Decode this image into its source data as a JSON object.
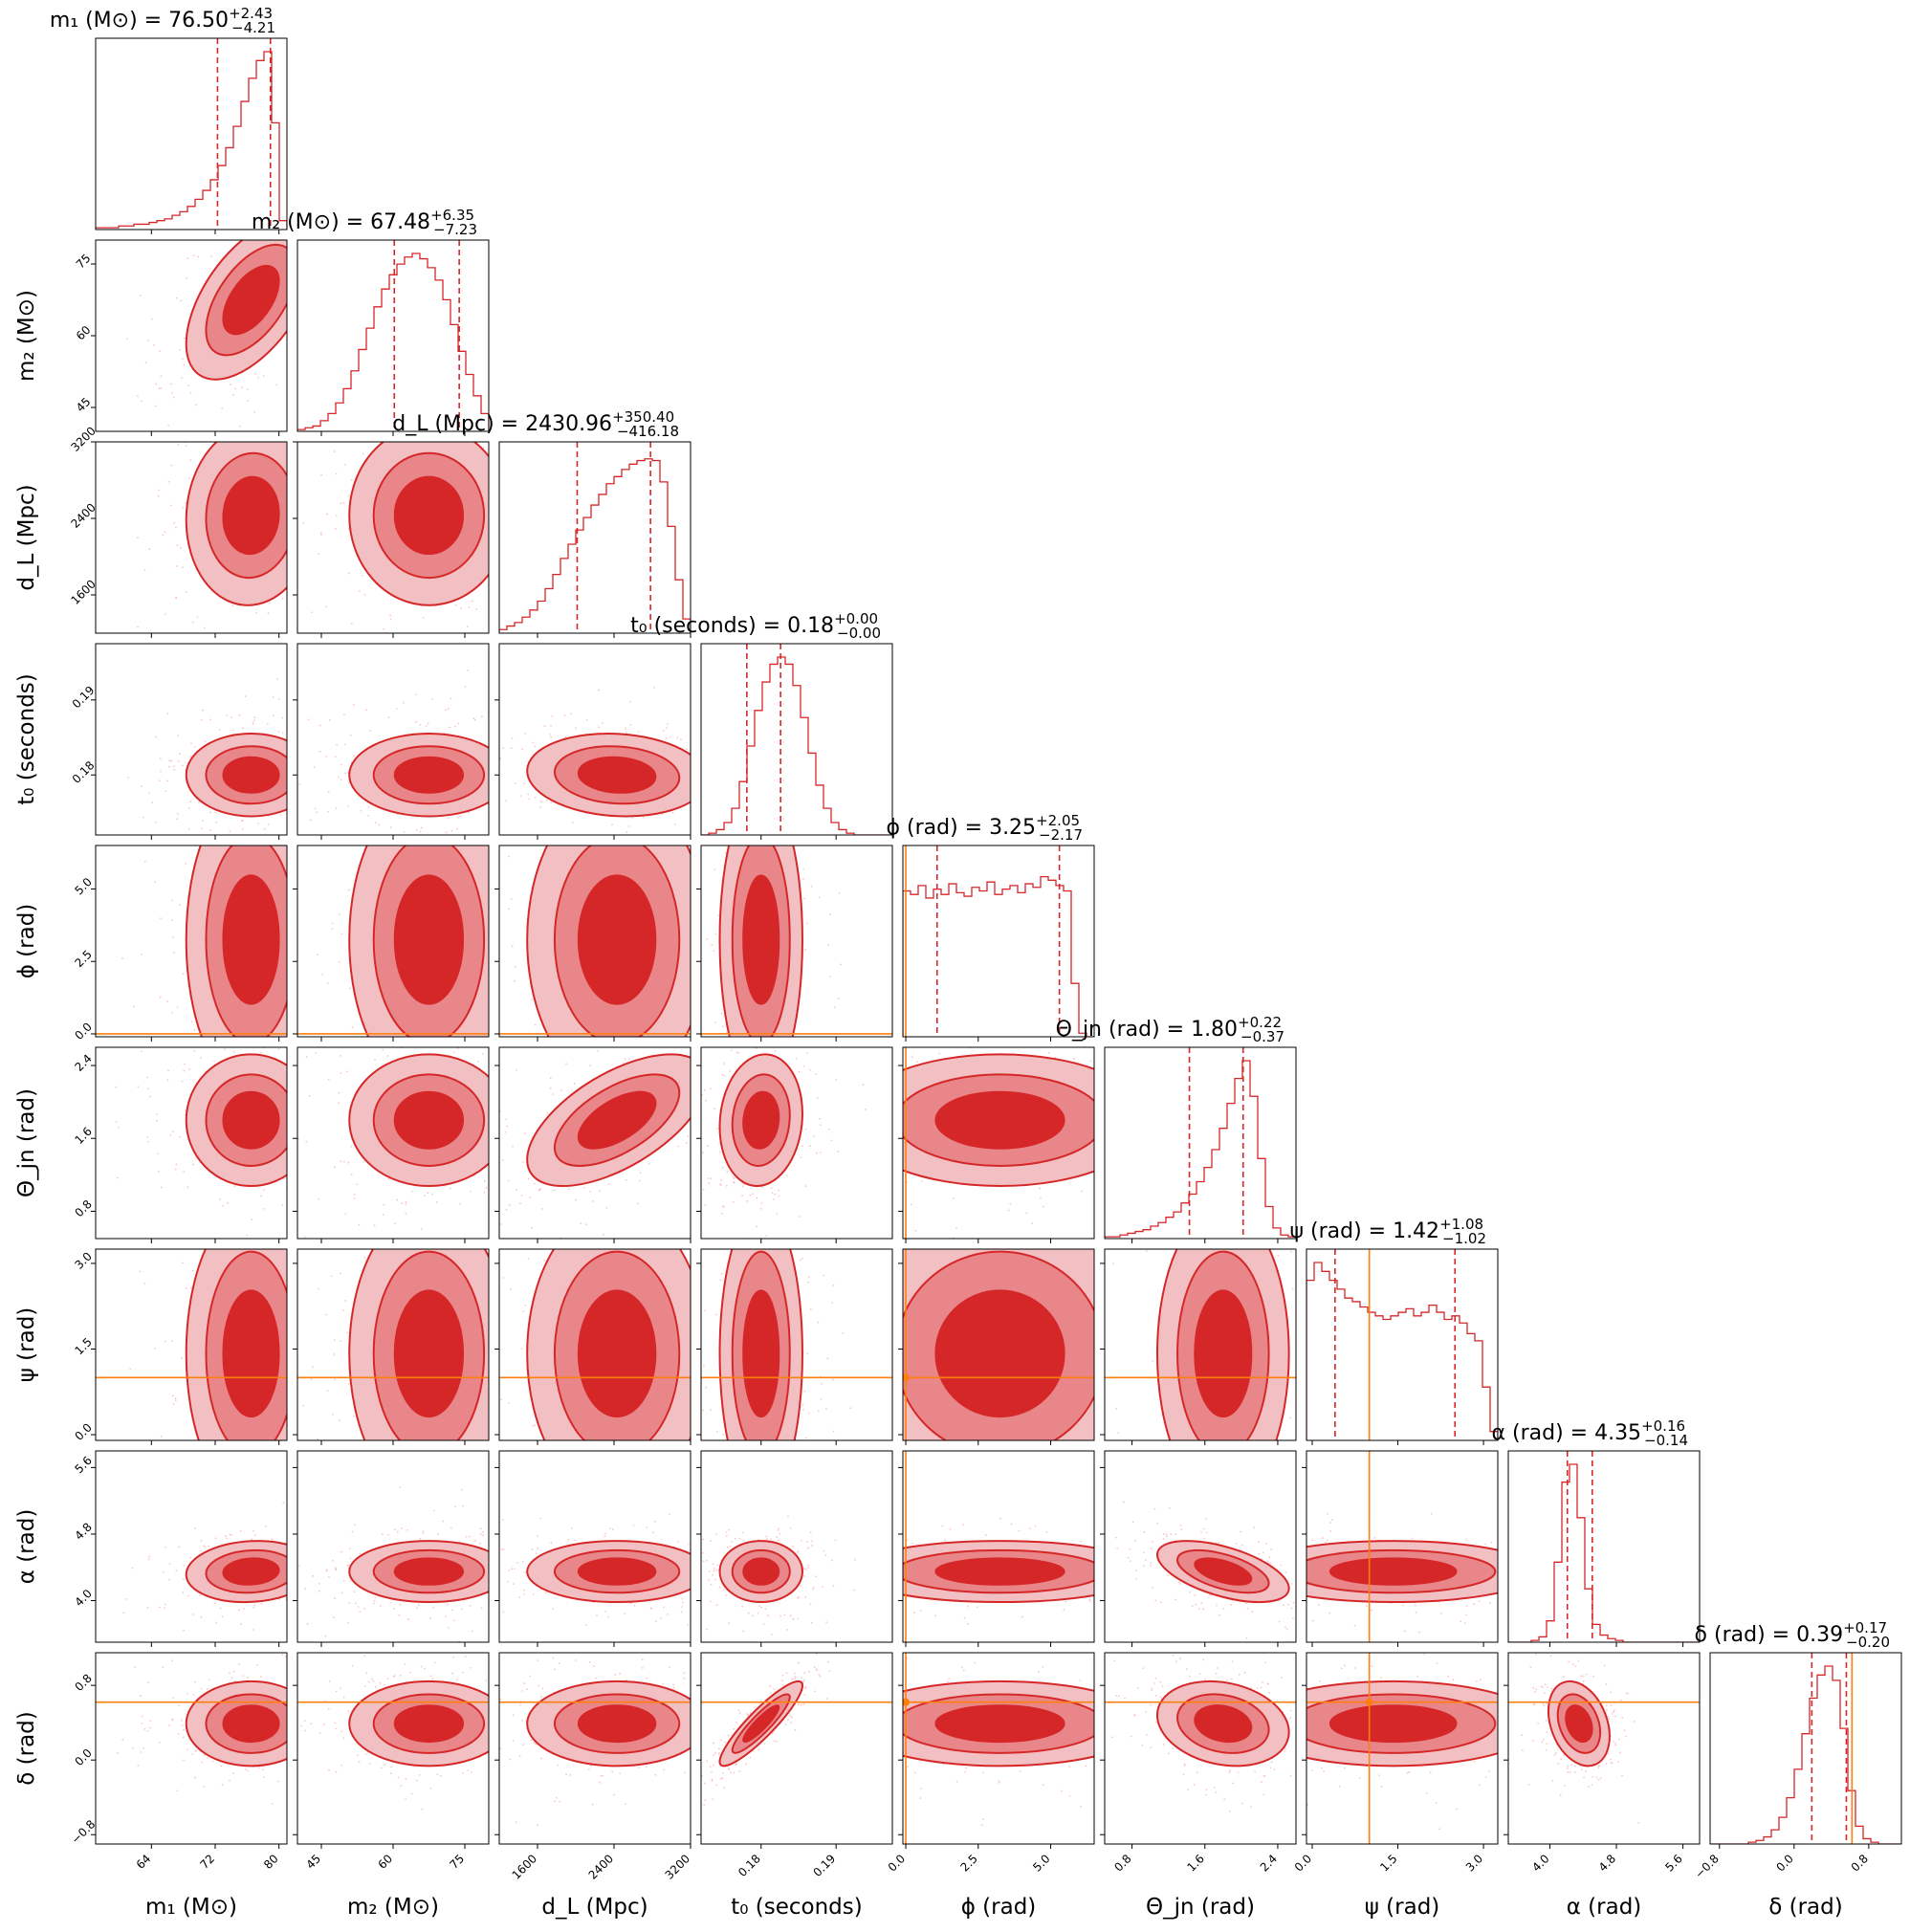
{
  "chart_data": {
    "type": "corner",
    "description_of_marks": "posterior samples, 2D density contours, 1D histograms",
    "colors": {
      "posterior": "#d62728",
      "contour_mid": "#e8868a",
      "contour_outer": "#f2c0c2",
      "scatter": "#f4a0a6",
      "truth": "#ff7f0e",
      "axis": "#000000"
    },
    "parameters": [
      {
        "id": "m1",
        "axis_label": "m₁ (M⊙)",
        "title": "m₁ (M⊙) = 76.50",
        "title_plus": "+2.43",
        "title_minus": "−4.21",
        "range": [
          57,
          81
        ],
        "ticks": [
          64,
          72,
          80
        ],
        "tick_labels": [
          "64",
          "72",
          "80"
        ],
        "median": 76.5,
        "q_low": 72.29,
        "q_high": 78.93,
        "truth": null,
        "hist": [
          0.01,
          0.01,
          0.01,
          0.02,
          0.02,
          0.03,
          0.03,
          0.04,
          0.05,
          0.06,
          0.08,
          0.1,
          0.13,
          0.17,
          0.22,
          0.28,
          0.36,
          0.46,
          0.58,
          0.72,
          0.85,
          0.95,
          1.0,
          0.6,
          0.05
        ]
      },
      {
        "id": "m2",
        "axis_label": "m₂ (M⊙)",
        "title": "m₂ (M⊙) = 67.48",
        "title_plus": "+6.35",
        "title_minus": "−7.23",
        "range": [
          40,
          80
        ],
        "ticks": [
          45,
          60,
          75
        ],
        "tick_labels": [
          "45",
          "60",
          "75"
        ],
        "median": 67.48,
        "q_low": 60.25,
        "q_high": 73.83,
        "truth": null,
        "hist": [
          0.01,
          0.02,
          0.03,
          0.06,
          0.1,
          0.16,
          0.24,
          0.34,
          0.46,
          0.58,
          0.7,
          0.8,
          0.88,
          0.94,
          0.98,
          1.0,
          0.97,
          0.92,
          0.85,
          0.74,
          0.6,
          0.45,
          0.32,
          0.2,
          0.1
        ]
      },
      {
        "id": "dl",
        "axis_label": "d_L (Mpc)",
        "title": "d_L (Mpc) = 2430.96",
        "title_plus": "+350.40",
        "title_minus": "−416.18",
        "range": [
          1200,
          3200
        ],
        "ticks": [
          1600,
          2400,
          3200
        ],
        "tick_labels": [
          "1600",
          "2400",
          "3200"
        ],
        "median": 2430.96,
        "q_low": 2014.78,
        "q_high": 2781.36,
        "truth": null,
        "hist": [
          0.02,
          0.04,
          0.06,
          0.09,
          0.13,
          0.18,
          0.25,
          0.33,
          0.42,
          0.5,
          0.58,
          0.65,
          0.72,
          0.78,
          0.84,
          0.88,
          0.92,
          0.95,
          0.97,
          0.98,
          0.97,
          0.85,
          0.6,
          0.3,
          0.08
        ]
      },
      {
        "id": "t0",
        "axis_label": "t₀ (seconds)",
        "title": "t₀ (seconds) = 0.18",
        "title_plus": "+0.00",
        "title_minus": "−0.00",
        "range": [
          0.172,
          0.1975
        ],
        "ticks": [
          0.18,
          0.19
        ],
        "tick_labels": [
          "0.18",
          "0.19"
        ],
        "median": 0.18,
        "q_low": 0.1781,
        "q_high": 0.1826,
        "truth": null,
        "hist": [
          0.0,
          0.01,
          0.03,
          0.07,
          0.15,
          0.3,
          0.5,
          0.7,
          0.86,
          0.96,
          1.0,
          0.96,
          0.84,
          0.66,
          0.46,
          0.28,
          0.15,
          0.07,
          0.03,
          0.01,
          0.0,
          0.0,
          0.0,
          0.0,
          0.0
        ]
      },
      {
        "id": "phi",
        "axis_label": "ϕ (rad)",
        "title": "ϕ (rad) = 3.25",
        "title_plus": "+2.05",
        "title_minus": "−2.17",
        "range": [
          -0.1,
          6.5
        ],
        "ticks": [
          0.0,
          2.5,
          5.0
        ],
        "tick_labels": [
          "0.0",
          "2.5",
          "5.0"
        ],
        "median": 3.25,
        "q_low": 1.08,
        "q_high": 5.3,
        "truth": 0.0,
        "hist": [
          0.82,
          0.8,
          0.85,
          0.78,
          0.83,
          0.8,
          0.86,
          0.81,
          0.79,
          0.84,
          0.82,
          0.87,
          0.8,
          0.83,
          0.85,
          0.81,
          0.86,
          0.84,
          0.9,
          0.88,
          0.85,
          0.82,
          0.3,
          0.02,
          0.0
        ]
      },
      {
        "id": "thetajn",
        "axis_label": "Θ_jn (rad)",
        "title": "Θ_jn (rad) = 1.80",
        "title_plus": "+0.22",
        "title_minus": "−0.37",
        "range": [
          0.5,
          2.6
        ],
        "ticks": [
          0.8,
          1.6,
          2.4
        ],
        "tick_labels": [
          "0.8",
          "1.6",
          "2.4"
        ],
        "median": 1.8,
        "q_low": 1.43,
        "q_high": 2.02,
        "truth": null,
        "hist": [
          0.01,
          0.01,
          0.02,
          0.03,
          0.04,
          0.05,
          0.07,
          0.09,
          0.12,
          0.15,
          0.2,
          0.25,
          0.32,
          0.4,
          0.5,
          0.62,
          0.76,
          0.9,
          1.0,
          0.8,
          0.45,
          0.18,
          0.06,
          0.02,
          0.01
        ]
      },
      {
        "id": "psi",
        "axis_label": "ψ (rad)",
        "title": "ψ (rad) = 1.42",
        "title_plus": "+1.08",
        "title_minus": "−1.02",
        "range": [
          -0.1,
          3.25
        ],
        "ticks": [
          0.0,
          1.5,
          3.0
        ],
        "tick_labels": [
          "0.0",
          "1.5",
          "3.0"
        ],
        "median": 1.42,
        "q_low": 0.4,
        "q_high": 2.5,
        "truth": 1.0,
        "hist": [
          0.9,
          1.0,
          0.95,
          0.9,
          0.85,
          0.8,
          0.78,
          0.75,
          0.72,
          0.7,
          0.68,
          0.7,
          0.72,
          0.74,
          0.7,
          0.72,
          0.76,
          0.72,
          0.68,
          0.7,
          0.66,
          0.6,
          0.56,
          0.3,
          0.05
        ]
      },
      {
        "id": "alpha",
        "axis_label": "α (rad)",
        "title": "α (rad) = 4.35",
        "title_plus": "+0.16",
        "title_minus": "−0.14",
        "range": [
          3.5,
          5.8
        ],
        "ticks": [
          4.0,
          4.8,
          5.6
        ],
        "tick_labels": [
          "4.0",
          "4.8",
          "5.6"
        ],
        "median": 4.35,
        "q_low": 4.21,
        "q_high": 4.51,
        "truth": null,
        "hist": [
          0.0,
          0.0,
          0.0,
          0.01,
          0.03,
          0.12,
          0.45,
          0.9,
          1.0,
          0.7,
          0.3,
          0.1,
          0.04,
          0.02,
          0.01,
          0.0,
          0.0,
          0.0,
          0.0,
          0.0,
          0.0,
          0.0,
          0.0,
          0.0,
          0.0
        ]
      },
      {
        "id": "delta",
        "axis_label": "δ (rad)",
        "title": "δ (rad) = 0.39",
        "title_plus": "+0.17",
        "title_minus": "−0.20",
        "range": [
          -0.9,
          1.15
        ],
        "ticks": [
          -0.8,
          0.0,
          0.8
        ],
        "tick_labels": [
          "−0.8",
          "0.0",
          "0.8"
        ],
        "median": 0.39,
        "q_low": 0.19,
        "q_high": 0.56,
        "truth": 0.62,
        "hist": [
          0.0,
          0.0,
          0.0,
          0.0,
          0.0,
          0.01,
          0.02,
          0.04,
          0.08,
          0.15,
          0.26,
          0.42,
          0.62,
          0.82,
          0.95,
          1.0,
          0.92,
          0.65,
          0.3,
          0.1,
          0.03,
          0.01,
          0.0,
          0.0,
          0.0
        ]
      }
    ],
    "correlations": {
      "m1-m2": 0.55,
      "m1-dl": 0.05,
      "m1-t0": 0.0,
      "m1-phi": 0.0,
      "m1-thetajn": 0.0,
      "m1-psi": 0.0,
      "m1-alpha": 0.1,
      "m1-delta": 0.0,
      "m2-dl": 0.0,
      "m2-t0": 0.0,
      "m2-phi": 0.0,
      "m2-thetajn": 0.0,
      "m2-psi": 0.0,
      "m2-alpha": 0.0,
      "m2-delta": 0.0,
      "dl-t0": -0.1,
      "dl-phi": 0.0,
      "dl-thetajn": 0.6,
      "dl-psi": 0.0,
      "dl-alpha": 0.0,
      "dl-delta": 0.0,
      "t0-phi": 0.0,
      "t0-thetajn": 0.1,
      "t0-psi": 0.0,
      "t0-alpha": 0.0,
      "t0-delta": 0.9,
      "phi-thetajn": 0.0,
      "phi-psi": 0.0,
      "phi-alpha": 0.0,
      "phi-delta": 0.0,
      "thetajn-psi": 0.0,
      "thetajn-alpha": -0.55,
      "thetajn-delta": -0.2,
      "psi-alpha": 0.0,
      "psi-delta": 0.0,
      "alpha-delta": -0.3
    }
  }
}
